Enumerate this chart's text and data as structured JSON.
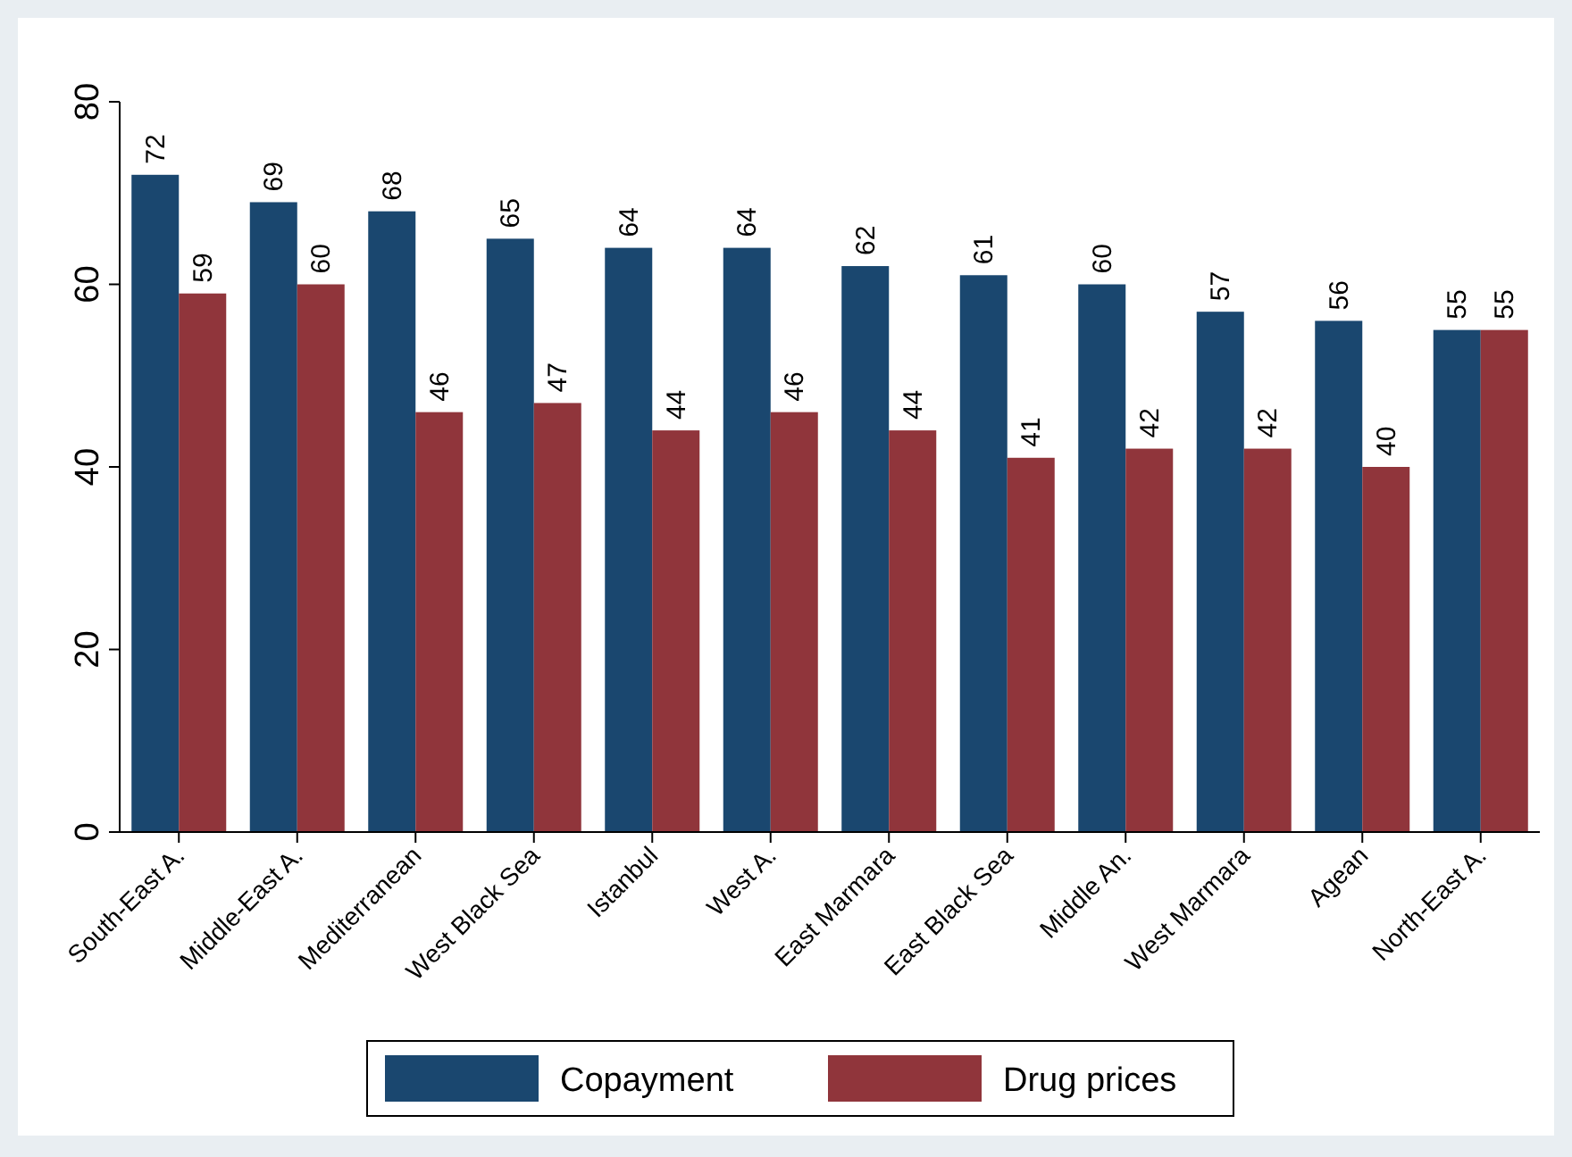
{
  "chart_data": {
    "type": "bar",
    "categories": [
      "South-East A.",
      "Middle-East A.",
      "Mediterranean",
      "West Black Sea",
      "Istanbul",
      "West A.",
      "East Marmara",
      "East Black Sea",
      "Middle An.",
      "West Marmara",
      "Agean",
      "North-East A."
    ],
    "series": [
      {
        "name": "Copayment",
        "color": "#1a476f",
        "values": [
          72,
          69,
          68,
          65,
          64,
          64,
          62,
          61,
          60,
          57,
          56,
          55
        ]
      },
      {
        "name": "Drug prices",
        "color": "#90353b",
        "values": [
          59,
          60,
          46,
          47,
          44,
          46,
          44,
          41,
          42,
          42,
          40,
          55
        ]
      }
    ],
    "ylim": [
      0,
      80
    ],
    "yticks": [
      0,
      20,
      40,
      60,
      80
    ],
    "grid": false,
    "legend": "bottom",
    "data_labels": true
  }
}
